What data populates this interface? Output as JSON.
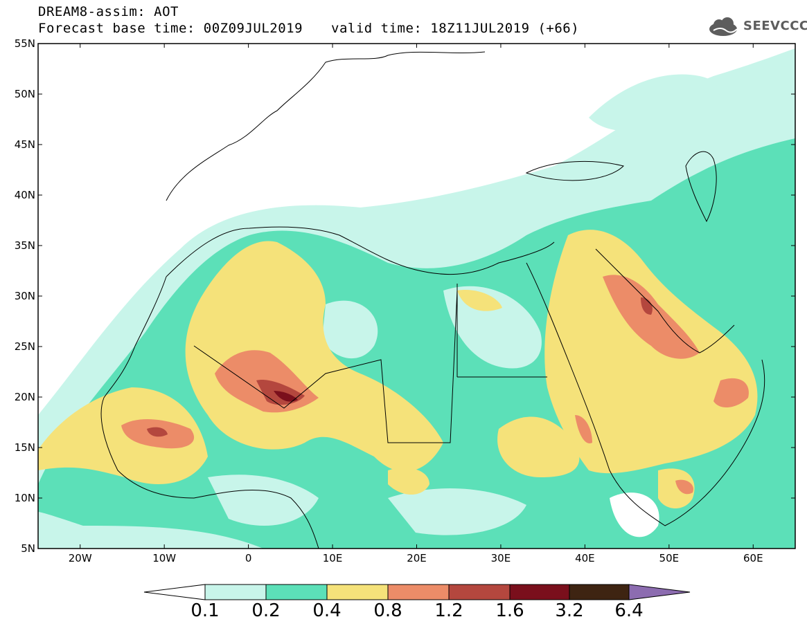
{
  "header": {
    "title": "DREAM8-assim: AOT",
    "forecast_base": "Forecast base time: 00Z09JUL2019",
    "valid_time": "valid time: 18Z11JUL2019 (+66)",
    "logo_text": "SEEVCCC"
  },
  "map": {
    "lat_labels": [
      "55N",
      "50N",
      "45N",
      "40N",
      "35N",
      "30N",
      "25N",
      "20N",
      "15N",
      "10N",
      "5N"
    ],
    "lon_labels": [
      "20W",
      "10W",
      "0",
      "10E",
      "20E",
      "30E",
      "40E",
      "50E",
      "60E"
    ],
    "bounds": {
      "lon_min": -25,
      "lon_max": 65,
      "lat_min": 5,
      "lat_max": 55
    }
  },
  "colorbar": {
    "levels": [
      "0.1",
      "0.2",
      "0.4",
      "0.8",
      "1.2",
      "1.6",
      "3.2",
      "6.4"
    ],
    "colors": [
      "#ffffff",
      "#c8f5ea",
      "#5ce0b8",
      "#f5e27a",
      "#ec8c68",
      "#b4473e",
      "#7a0f1c",
      "#3e2412",
      "#8c6cb0"
    ]
  },
  "colors": {
    "c1": "#c8f5ea",
    "c2": "#5ce0b8",
    "c3": "#f5e27a",
    "c4": "#ec8c68",
    "c5": "#b4473e",
    "c6": "#7a0f1c",
    "c7": "#3e2412"
  }
}
